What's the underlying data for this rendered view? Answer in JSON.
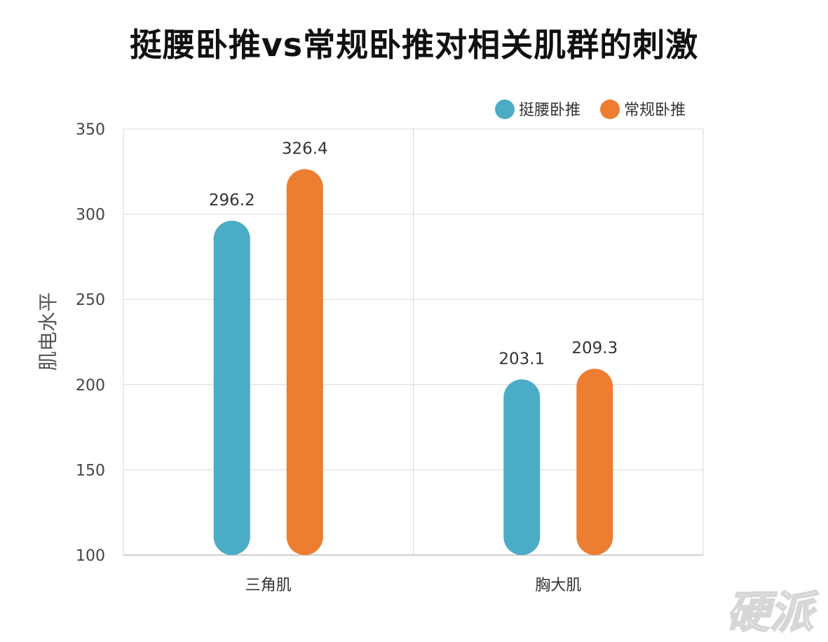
{
  "chart_data": {
    "type": "bar",
    "title": "挺腰卧推vs常规卧推对相关肌群的刺激",
    "xlabel": "",
    "ylabel": "肌电水平",
    "ylim": [
      100,
      350
    ],
    "yticks": [
      100,
      150,
      200,
      250,
      300,
      350
    ],
    "grid": true,
    "legend_position": "top-right",
    "categories": [
      "三角肌",
      "胸大肌"
    ],
    "series": [
      {
        "name": "挺腰卧推",
        "color": "#4BACC6",
        "values": [
          296.2,
          203.1
        ]
      },
      {
        "name": "常规卧推",
        "color": "#ED7D31",
        "values": [
          326.4,
          209.3
        ]
      }
    ]
  },
  "watermark": "硬派"
}
